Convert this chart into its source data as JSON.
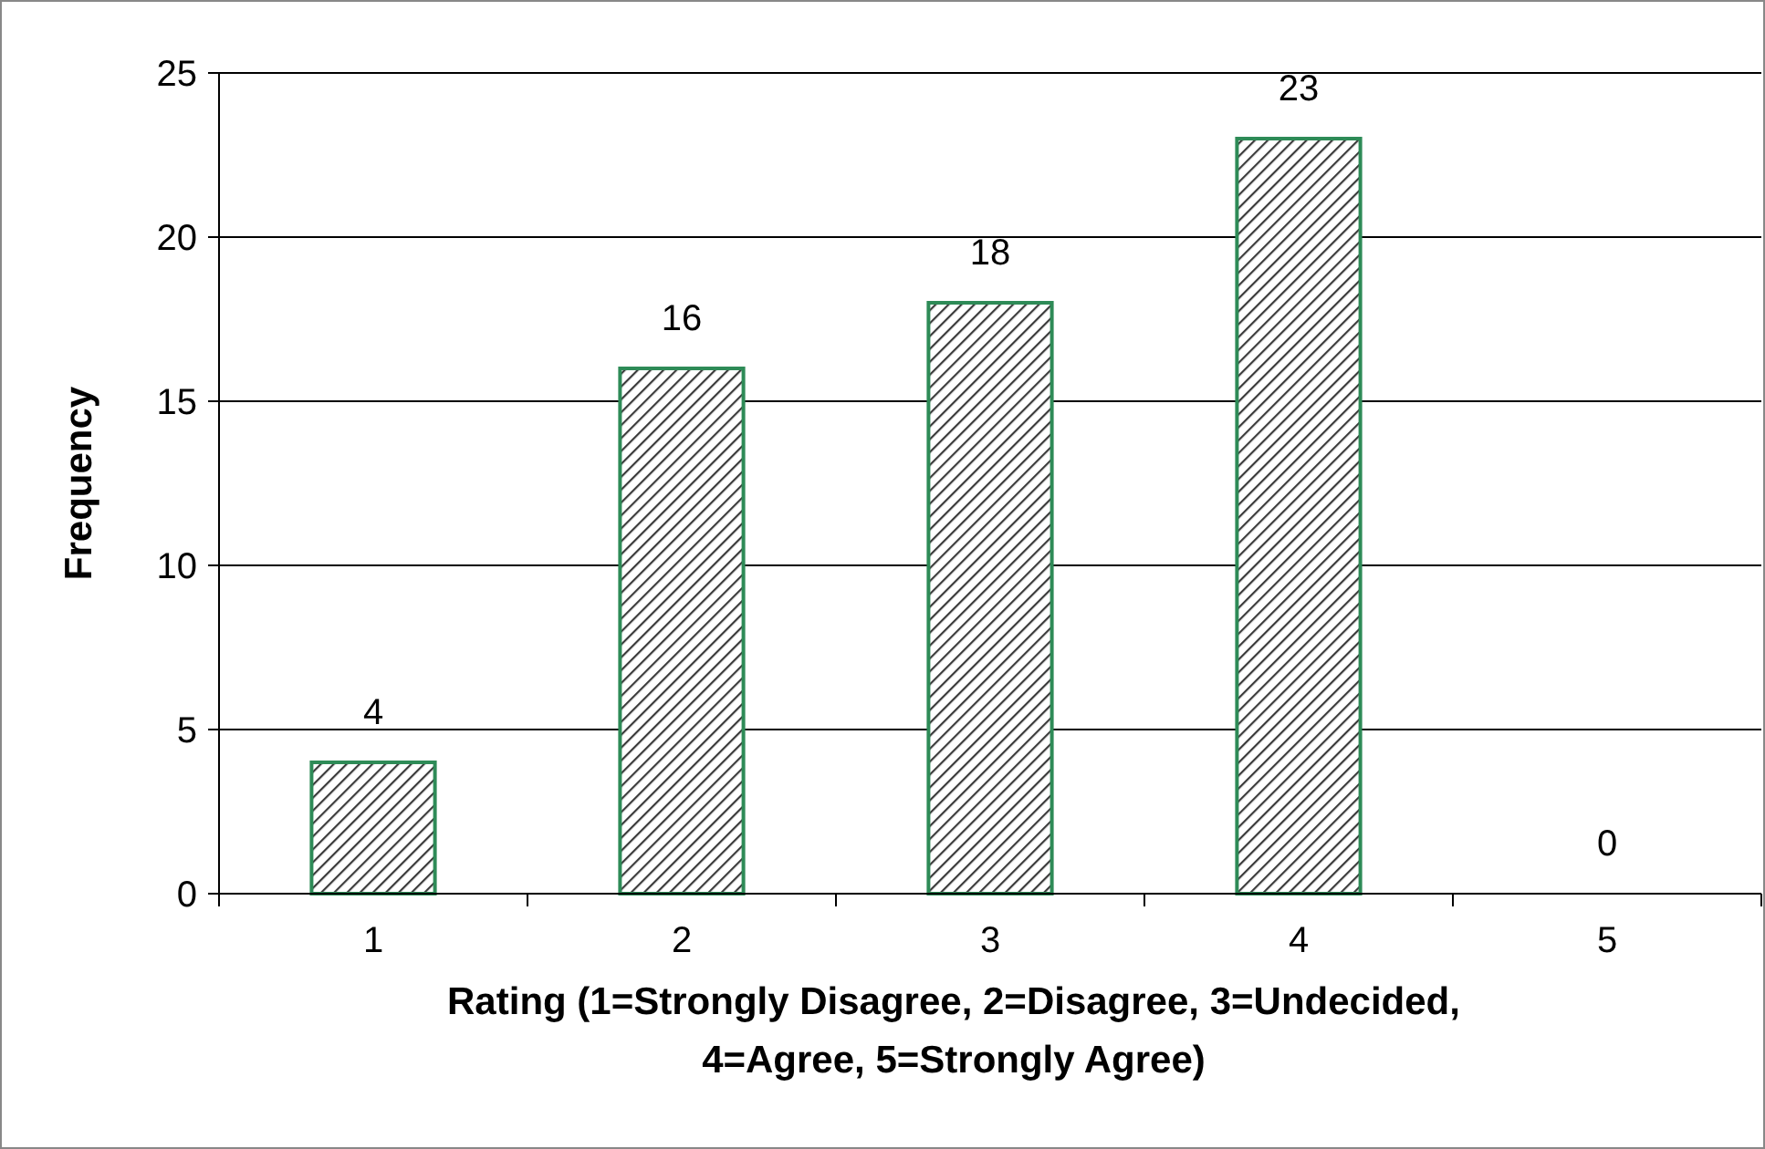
{
  "chart_data": {
    "type": "bar",
    "xlabel": "Rating (1=Strongly Disagree, 2=Disagree, 3=Undecided,\n4=Agree, 5=Strongly Agree)",
    "ylabel": "Frequency",
    "categories": [
      "1",
      "2",
      "3",
      "4",
      "5"
    ],
    "values": [
      4,
      16,
      18,
      23,
      0
    ],
    "color": "#2e8b57",
    "ylim": [
      0,
      25
    ],
    "yticks": [
      0,
      5,
      10,
      15,
      20,
      25
    ],
    "grid": "y",
    "data_labels": true
  }
}
